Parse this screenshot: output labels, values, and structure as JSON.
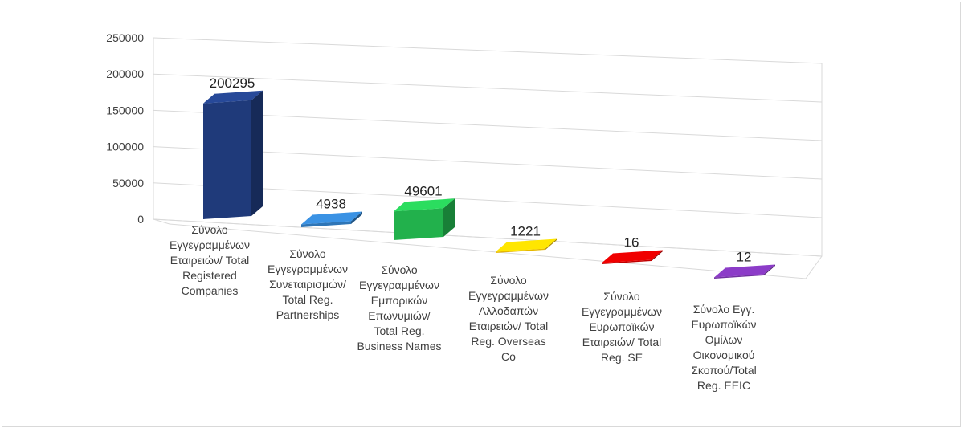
{
  "chart_data": {
    "type": "bar",
    "style": "3d-column",
    "categories": [
      [
        "Σύνολο",
        "Εγγεγραμμένων",
        "Εταιρειών/ Total",
        "Registered",
        "Companies"
      ],
      [
        "Σύνολο",
        "Εγγεγραμμένων",
        "Συνεταιρισμών/",
        "Total Reg.",
        "Partnerships"
      ],
      [
        "Σύνολο",
        "Εγγεγραμμένων",
        "Εμπορικών",
        "Επωνυμιών/",
        "Total Reg.",
        "Business Names"
      ],
      [
        "Σύνολο",
        "Εγγεγραμμένων",
        "Αλλοδαπών",
        "Εταιρειών/ Total",
        "Reg. Overseas",
        "Co"
      ],
      [
        "Σύνολο",
        "Εγγεγραμμένων",
        "Ευρωπαϊκών",
        "Εταιρειών/ Total",
        "Reg. SE"
      ],
      [
        "Σύνολο Εγγ.",
        "Ευρωπαϊκών",
        "Ομίλων",
        "Οικονομικού",
        "Σκοπού/Total",
        "Reg. EEIC"
      ]
    ],
    "values": [
      200295,
      4938,
      49601,
      1221,
      16,
      12
    ],
    "data_labels": [
      "200295",
      "4938",
      "49601",
      "1221",
      "16",
      "12"
    ],
    "colors": [
      "#1f3a7a",
      "#2e75b6",
      "#22b14c",
      "#e6b800",
      "#c00000",
      "#7030a0"
    ],
    "ylim": [
      0,
      250000
    ],
    "yticks": [
      0,
      50000,
      100000,
      150000,
      200000,
      250000
    ],
    "ytick_labels": [
      "0",
      "50000",
      "100000",
      "150000",
      "200000",
      "250000"
    ],
    "grid": true,
    "title": "",
    "xlabel": "",
    "ylabel": ""
  }
}
